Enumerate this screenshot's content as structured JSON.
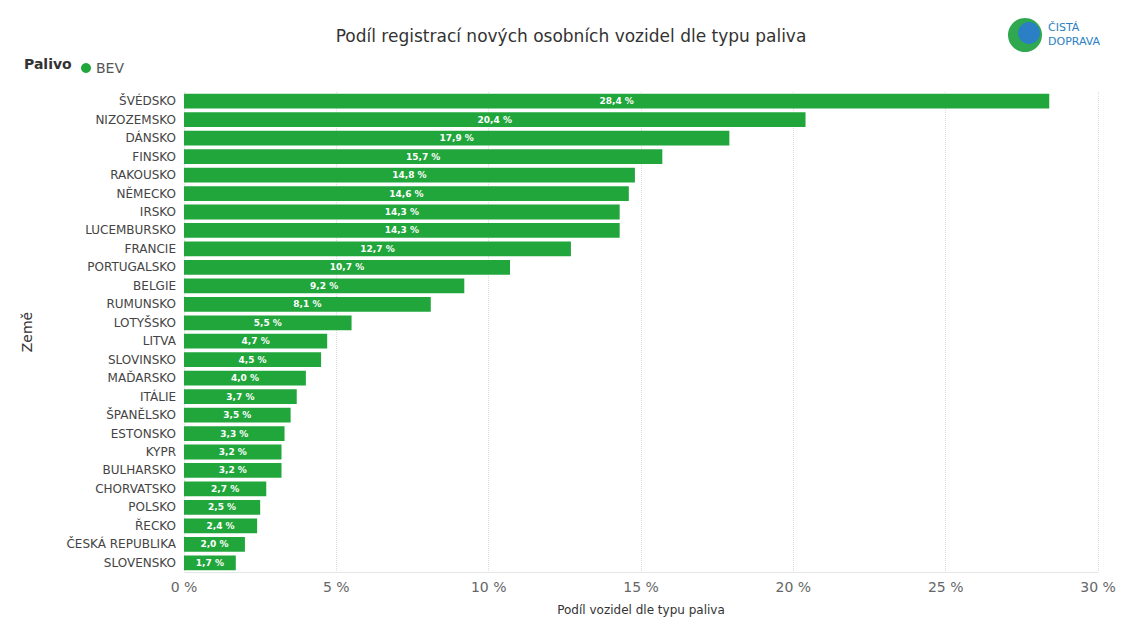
{
  "chart_data": {
    "type": "bar",
    "orientation": "horizontal",
    "title": "Podíl registrací nových osobních vozidel dle typu paliva",
    "logo": [
      "ČISTÁ",
      "DOPRAVA"
    ],
    "legend_title": "Palivo",
    "legend": "top-left",
    "x_label": "Podíl vozidel dle typu paliva",
    "y_label": "Země",
    "categories": [
      "ŠVÉDSKO",
      "NIZOZEMSKO",
      "DÁNSKO",
      "FINSKO",
      "RAKOUSKO",
      "NĚMECKO",
      "IRSKO",
      "LUCEMBURSKO",
      "FRANCIE",
      "PORTUGALSKO",
      "BELGIE",
      "RUMUNSKO",
      "LOTYŠSKO",
      "LITVA",
      "SLOVINSKO",
      "MAĎARSKO",
      "ITÁLIE",
      "ŠPANĚLSKO",
      "ESTONSKO",
      "KYPR",
      "BULHARSKO",
      "CHORVATSKO",
      "POLSKO",
      "ŘECKO",
      "ČESKÁ REPUBLIKA",
      "SLOVENSKO"
    ],
    "series": [
      {
        "name": "BEV",
        "color": "#21a63b",
        "values": [
          28.4,
          20.4,
          17.9,
          15.7,
          14.8,
          14.6,
          14.3,
          14.3,
          12.7,
          10.7,
          9.2,
          8.1,
          5.5,
          4.7,
          4.5,
          4.0,
          3.7,
          3.5,
          3.3,
          3.2,
          3.2,
          2.7,
          2.5,
          2.4,
          2.0,
          1.7
        ],
        "value_labels": [
          "28,4 %",
          "20,4 %",
          "17,9 %",
          "15,7 %",
          "14,8 %",
          "14,6 %",
          "14,3 %",
          "14,3 %",
          "12,7 %",
          "10,7 %",
          "9,2 %",
          "8,1 %",
          "5,5 %",
          "4,7 %",
          "4,5 %",
          "4,0 %",
          "3,7 %",
          "3,5 %",
          "3,3 %",
          "3,2 %",
          "3,2 %",
          "2,7 %",
          "2,5 %",
          "2,4 %",
          "2,0 %",
          "1,7 %"
        ]
      }
    ],
    "xlim": [
      0,
      30
    ],
    "xticks": [
      {
        "value": 0,
        "label": "0 %"
      },
      {
        "value": 5,
        "label": "5 %"
      },
      {
        "value": 10,
        "label": "10 %"
      },
      {
        "value": 15,
        "label": "15 %"
      },
      {
        "value": 20,
        "label": "20 %"
      },
      {
        "value": 25,
        "label": "25 %"
      },
      {
        "value": 30,
        "label": "30 %"
      }
    ],
    "grid": true,
    "data_labels": true
  }
}
